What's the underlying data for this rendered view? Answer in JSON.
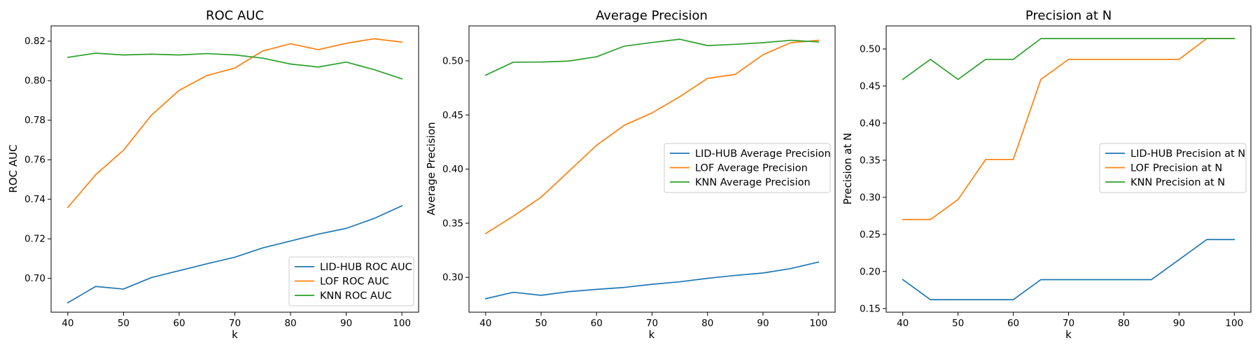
{
  "chart_data": [
    {
      "type": "line",
      "title": "ROC AUC",
      "xlabel": "k",
      "ylabel": "ROC AUC",
      "x": [
        40,
        45,
        50,
        55,
        60,
        65,
        70,
        75,
        80,
        85,
        90,
        95,
        100
      ],
      "xticks": [
        "40",
        "50",
        "60",
        "70",
        "80",
        "90",
        "100"
      ],
      "yticks": [
        "0.70",
        "0.72",
        "0.74",
        "0.76",
        "0.78",
        "0.80",
        "0.82"
      ],
      "xlim": [
        37,
        103
      ],
      "ylim": [
        0.6829,
        0.8277
      ],
      "grid": false,
      "legend_position": "bottom-right",
      "series": [
        {
          "name": "LID-HUB ROC AUC",
          "color": "#1f77b4",
          "values": [
            0.6877,
            0.6959,
            0.6946,
            0.7004,
            0.7039,
            0.7074,
            0.7107,
            0.7154,
            0.7189,
            0.7224,
            0.7253,
            0.7303,
            0.7367
          ]
        },
        {
          "name": "LOF ROC AUC",
          "color": "#ff7f0e",
          "values": [
            0.7359,
            0.7524,
            0.7648,
            0.7825,
            0.7951,
            0.8026,
            0.8064,
            0.815,
            0.8187,
            0.8157,
            0.8189,
            0.8212,
            0.8195
          ]
        },
        {
          "name": "KNN ROC AUC",
          "color": "#2ca02c",
          "values": [
            0.8118,
            0.8139,
            0.813,
            0.8134,
            0.813,
            0.8137,
            0.813,
            0.8114,
            0.8084,
            0.8069,
            0.8094,
            0.8056,
            0.8009
          ]
        }
      ]
    },
    {
      "type": "line",
      "title": "Average Precision",
      "xlabel": "k",
      "ylabel": "Average Precision",
      "x": [
        40,
        45,
        50,
        55,
        60,
        65,
        70,
        75,
        80,
        85,
        90,
        95,
        100
      ],
      "xticks": [
        "40",
        "50",
        "60",
        "70",
        "80",
        "90",
        "100"
      ],
      "yticks": [
        "0.30",
        "0.35",
        "0.40",
        "0.45",
        "0.50"
      ],
      "xlim": [
        37,
        103
      ],
      "ylim": [
        0.2678,
        0.5323
      ],
      "grid": false,
      "legend_position": "center-right",
      "series": [
        {
          "name": "LID-HUB Average Precision",
          "color": "#1f77b4",
          "values": [
            0.2803,
            0.2862,
            0.2834,
            0.2868,
            0.2889,
            0.2907,
            0.2936,
            0.2959,
            0.2991,
            0.3018,
            0.304,
            0.3081,
            0.3141
          ]
        },
        {
          "name": "LOF Average Precision",
          "color": "#ff7f0e",
          "values": [
            0.3404,
            0.3566,
            0.374,
            0.398,
            0.422,
            0.4405,
            0.4519,
            0.4669,
            0.4838,
            0.4875,
            0.5056,
            0.5168,
            0.519
          ]
        },
        {
          "name": "KNN Average Precision",
          "color": "#2ca02c",
          "values": [
            0.4868,
            0.4988,
            0.4989,
            0.4998,
            0.5038,
            0.5136,
            0.517,
            0.52,
            0.5141,
            0.5153,
            0.5168,
            0.519,
            0.5175
          ]
        }
      ]
    },
    {
      "type": "line",
      "title": "Precision at N",
      "xlabel": "k",
      "ylabel": "Precision at N",
      "x": [
        40,
        45,
        50,
        55,
        60,
        65,
        70,
        75,
        80,
        85,
        90,
        95,
        100
      ],
      "xticks": [
        "40",
        "50",
        "60",
        "70",
        "80",
        "90",
        "100"
      ],
      "yticks": [
        "0.15",
        "0.20",
        "0.25",
        "0.30",
        "0.35",
        "0.40",
        "0.45",
        "0.50"
      ],
      "xlim": [
        37,
        103
      ],
      "ylim": [
        0.1451,
        0.5311
      ],
      "grid": false,
      "legend_position": "center-right",
      "series": [
        {
          "name": "LID-HUB Precision at N",
          "color": "#1f77b4",
          "values": [
            0.189,
            0.162,
            0.162,
            0.162,
            0.162,
            0.189,
            0.189,
            0.189,
            0.189,
            0.189,
            0.216,
            0.243,
            0.243
          ]
        },
        {
          "name": "LOF Precision at N",
          "color": "#ff7f0e",
          "values": [
            0.27,
            0.27,
            0.297,
            0.351,
            0.351,
            0.459,
            0.486,
            0.486,
            0.486,
            0.486,
            0.486,
            0.514,
            0.514
          ]
        },
        {
          "name": "KNN Precision at N",
          "color": "#2ca02c",
          "values": [
            0.459,
            0.486,
            0.459,
            0.486,
            0.486,
            0.514,
            0.514,
            0.514,
            0.514,
            0.514,
            0.514,
            0.514,
            0.514
          ]
        }
      ]
    }
  ]
}
